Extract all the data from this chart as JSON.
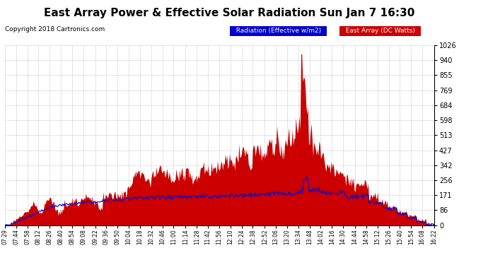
{
  "title": "East Array Power & Effective Solar Radiation Sun Jan 7 16:30",
  "copyright": "Copyright 2018 Cartronics.com",
  "legend_labels": [
    "Radiation (Effective w/m2)",
    "East Array (DC Watts)"
  ],
  "legend_colors": [
    "#0000cc",
    "#cc0000"
  ],
  "y_ticks": [
    0.0,
    85.5,
    171.0,
    256.4,
    341.9,
    427.4,
    512.9,
    598.4,
    683.8,
    769.3,
    854.8,
    940.3,
    1025.8
  ],
  "ymax": 1025.8,
  "ymin": 0.0,
  "background_color": "#ffffff",
  "plot_bg": "#ffffff",
  "grid_color": "#aaaaaa",
  "fill_color": "#cc0000",
  "line_color": "#0000cc",
  "title_fontsize": 11,
  "copyright_fontsize": 6.5,
  "time_labels": [
    "07:29",
    "07:44",
    "07:58",
    "08:12",
    "08:26",
    "08:40",
    "08:54",
    "09:08",
    "09:22",
    "09:36",
    "09:50",
    "10:04",
    "10:18",
    "10:32",
    "10:46",
    "11:00",
    "11:14",
    "11:28",
    "11:42",
    "11:56",
    "12:10",
    "12:24",
    "12:38",
    "12:52",
    "13:06",
    "13:20",
    "13:34",
    "13:48",
    "14:02",
    "14:16",
    "14:30",
    "14:44",
    "14:58",
    "15:12",
    "15:26",
    "15:40",
    "15:54",
    "16:08",
    "16:22"
  ]
}
